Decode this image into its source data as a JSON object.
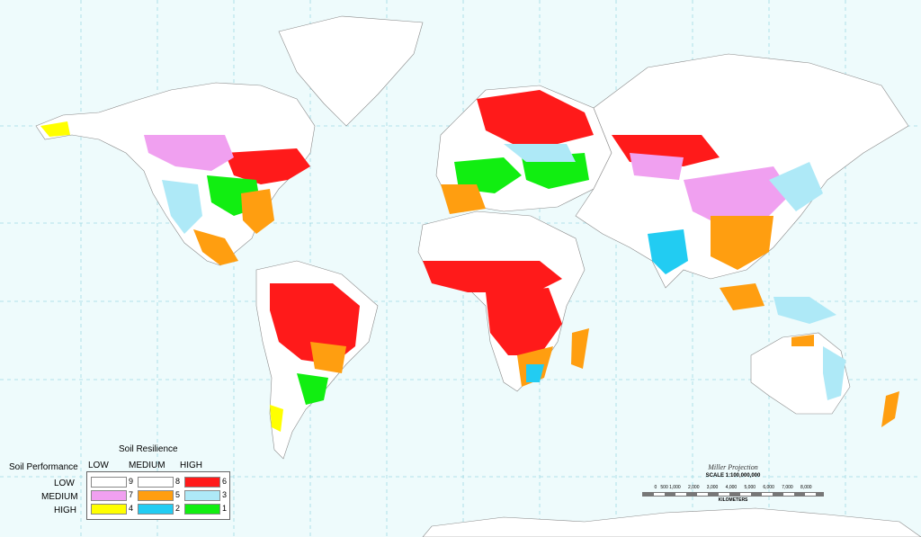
{
  "legend": {
    "title": "Soil Resilience",
    "row_title": "Soil Performance",
    "columns": [
      "LOW",
      "MEDIUM",
      "HIGH"
    ],
    "rows": [
      {
        "label": "LOW",
        "classes": [
          {
            "num": "9",
            "color": "#ffffff"
          },
          {
            "num": "8",
            "color": "#ffffff"
          },
          {
            "num": "6",
            "color": "#ff1a1a"
          }
        ]
      },
      {
        "label": "MEDIUM",
        "classes": [
          {
            "num": "7",
            "color": "#f0a0f0"
          },
          {
            "num": "5",
            "color": "#ff9e10"
          },
          {
            "num": "3",
            "color": "#aee9f7"
          }
        ]
      },
      {
        "label": "HIGH",
        "classes": [
          {
            "num": "4",
            "color": "#ffff00"
          },
          {
            "num": "2",
            "color": "#22ccf2"
          },
          {
            "num": "1",
            "color": "#11ee11"
          }
        ]
      }
    ]
  },
  "scale": {
    "projection": "Miller Projection",
    "scale_text": "SCALE 1:100,000,000",
    "ticks": "0   500 1,000      2,000      3,000      4,000      5,000      6,000      7,000      8,000",
    "unit": "KILOMETERS"
  },
  "colors": {
    "ocean": "#eefbfc",
    "class_6": "#ff1a1a",
    "class_5": "#ff9e10",
    "class_3": "#aee9f7",
    "class_7": "#f0a0f0",
    "class_4": "#ffff00",
    "class_2": "#22ccf2",
    "class_1": "#11ee11"
  }
}
